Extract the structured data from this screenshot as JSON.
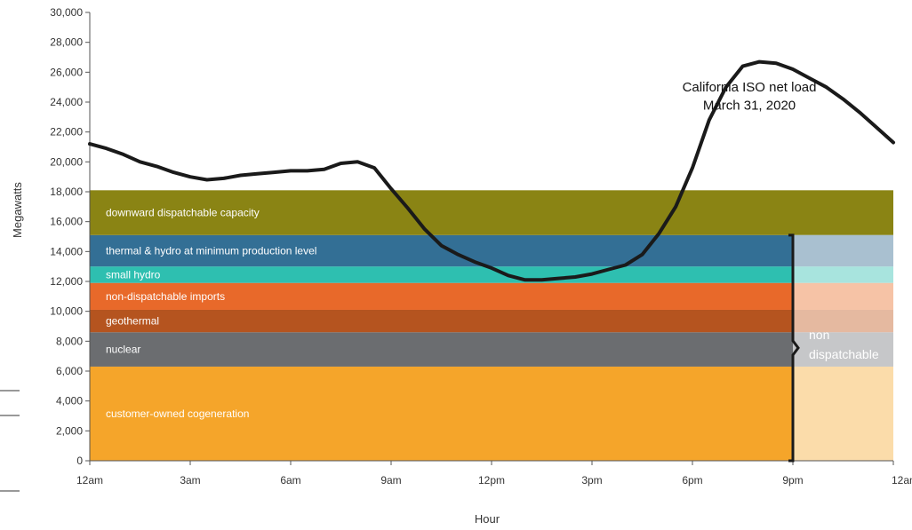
{
  "chart_data": {
    "type": "area",
    "xlabel": "Hour",
    "ylabel": "Megawatts",
    "ylim": [
      0,
      30000
    ],
    "y_ticks": [
      0,
      2000,
      4000,
      6000,
      8000,
      10000,
      12000,
      14000,
      16000,
      18000,
      20000,
      22000,
      24000,
      26000,
      28000,
      30000
    ],
    "y_tick_labels": [
      "0",
      "2,000",
      "4,000",
      "6,000",
      "8,000",
      "10,000",
      "12,000",
      "14,000",
      "16,000",
      "18,000",
      "20,000",
      "22,000",
      "24,000",
      "26,000",
      "28,000",
      "30,000"
    ],
    "xlim": [
      0,
      24
    ],
    "x_ticks": [
      0,
      3,
      6,
      9,
      12,
      15,
      18,
      21,
      24
    ],
    "x_tick_labels": [
      "12am",
      "3am",
      "6am",
      "9am",
      "12pm",
      "3pm",
      "6pm",
      "9pm",
      "12am"
    ],
    "grid": false,
    "bands": [
      {
        "label": "customer-owned cogeneration",
        "from": 0,
        "to": 6300,
        "color": "#f5a52a",
        "light_color": "#fbdcaa"
      },
      {
        "label": "nuclear",
        "from": 6300,
        "to": 8600,
        "color": "#6b6d70",
        "light_color": "#c6c7c9"
      },
      {
        "label": "geothermal",
        "from": 8600,
        "to": 10100,
        "color": "#b5541f",
        "light_color": "#e5b9a0"
      },
      {
        "label": "non-dispatchable imports",
        "from": 10100,
        "to": 11900,
        "color": "#e8692a",
        "light_color": "#f6c3a6"
      },
      {
        "label": "small hydro",
        "from": 11900,
        "to": 13000,
        "color": "#2ebfb0",
        "light_color": "#a8e4de"
      },
      {
        "label": "thermal & hydro at minimum production level",
        "from": 13000,
        "to": 15100,
        "color": "#336f95",
        "light_color": "#a9c0d0"
      },
      {
        "label": "downward dispatchable capacity",
        "from": 15100,
        "to": 18100,
        "color": "#8a8414",
        "light_color": null
      }
    ],
    "bands_end_x": 21,
    "net_load_series": {
      "x": [
        0,
        0.5,
        1,
        1.5,
        2,
        2.5,
        3,
        3.5,
        4,
        4.5,
        5,
        5.5,
        6,
        6.5,
        7,
        7.5,
        8,
        8.5,
        9,
        9.5,
        10,
        10.5,
        11,
        11.5,
        12,
        12.5,
        13,
        13.5,
        14,
        14.5,
        15,
        15.5,
        16,
        16.5,
        17,
        17.5,
        18,
        18.5,
        19,
        19.5,
        20,
        20.5,
        21,
        21.5,
        22,
        22.5,
        23,
        23.5,
        24
      ],
      "y": [
        21200,
        20900,
        20500,
        20000,
        19700,
        19300,
        19000,
        18800,
        18900,
        19100,
        19200,
        19300,
        19400,
        19400,
        19500,
        19900,
        20000,
        19600,
        18200,
        16900,
        15500,
        14400,
        13800,
        13300,
        12900,
        12400,
        12100,
        12100,
        12200,
        12300,
        12500,
        12800,
        13100,
        13800,
        15200,
        17000,
        19600,
        22800,
        25000,
        26400,
        26700,
        26600,
        26200,
        25600,
        25000,
        24200,
        23300,
        22300,
        21300
      ]
    },
    "annotations": [
      {
        "text": "California ISO net load",
        "x": 19.7,
        "y": 24700
      },
      {
        "text": "March 31, 2020",
        "x": 19.7,
        "y": 23500
      }
    ],
    "bracket": {
      "x": 21,
      "from": 0,
      "to": 15100,
      "label_lines": [
        "non",
        "dispatchable"
      ]
    }
  }
}
